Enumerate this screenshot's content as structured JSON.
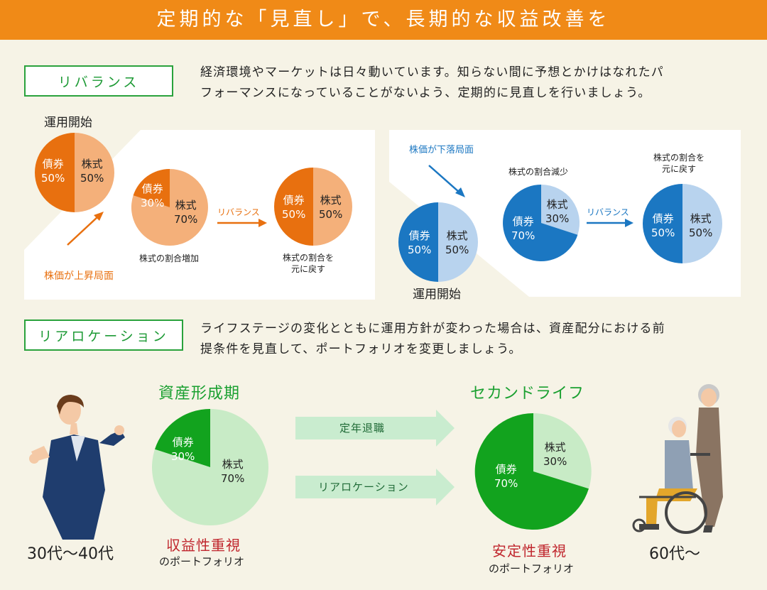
{
  "banner": {
    "title": "定期的な「見直し」で、長期的な収益改善を"
  },
  "rebalance": {
    "label": "リバランス",
    "description_line1": "経済環境やマーケットは日々動いています。知らない間に予想とかけはなれたパ",
    "description_line2": "フォーマンスになっていることがないよう、定期的に見直しを行いましょう。",
    "left": {
      "start_label": "運用開始",
      "start_bond": "債券\n50%",
      "start_stock": "株式\n50%",
      "trend_label": "株価が上昇局面",
      "mid_bond": "債券\n30%",
      "mid_stock": "株式\n70%",
      "mid_caption": "株式の割合増加",
      "arrow_label": "リバランス",
      "end_bond": "債券\n50%",
      "end_stock": "株式\n50%",
      "end_caption": "株式の割合を\n元に戻す"
    },
    "right": {
      "trend_label": "株価が下落局面",
      "start_label": "運用開始",
      "start_bond": "債券\n50%",
      "start_stock": "株式\n50%",
      "mid_caption": "株式の割合減少",
      "mid_bond": "債券\n70%",
      "mid_stock": "株式\n30%",
      "arrow_label": "リバランス",
      "end_caption": "株式の割合を\n元に戻す",
      "end_bond": "債券\n50%",
      "end_stock": "株式\n50%"
    }
  },
  "reallocation": {
    "label": "リアロケーション",
    "description_line1": "ライフステージの変化とともに運用方針が変わった場合は、資産配分における前",
    "description_line2": "提条件を見直して、ポートフォリオを変更しましょう。",
    "young": {
      "title": "資産形成期",
      "bond": "債券\n30%",
      "stock": "株式\n70%",
      "focus": "収益性重視",
      "portfolio": "のポートフォリオ",
      "age": "30代～40代"
    },
    "arrow_retire": "定年退職",
    "arrow_realloc": "リアロケーション",
    "senior": {
      "title": "セカンドライフ",
      "bond": "債券\n70%",
      "stock": "株式\n30%",
      "focus": "安定性重視",
      "portfolio": "のポートフォリオ",
      "age": "60代～"
    }
  },
  "colors": {
    "orange_dark": "#e8700f",
    "orange_light": "#f4b07a",
    "blue_dark": "#1b77c2",
    "blue_light": "#b8d3ee",
    "green_dark": "#12a31e",
    "green_light": "#c8ebc6",
    "banner": "#f08a17"
  }
}
